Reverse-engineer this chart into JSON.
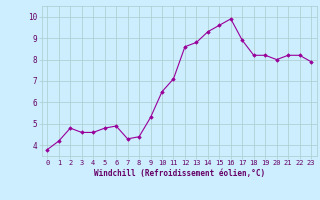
{
  "x": [
    0,
    1,
    2,
    3,
    4,
    5,
    6,
    7,
    8,
    9,
    10,
    11,
    12,
    13,
    14,
    15,
    16,
    17,
    18,
    19,
    20,
    21,
    22,
    23
  ],
  "y": [
    3.8,
    4.2,
    4.8,
    4.6,
    4.6,
    4.8,
    4.9,
    4.3,
    4.4,
    5.3,
    6.5,
    7.1,
    8.6,
    8.8,
    9.3,
    9.6,
    9.9,
    8.9,
    8.2,
    8.2,
    8.0,
    8.2,
    8.2,
    7.9
  ],
  "line_color": "#990099",
  "marker": "D",
  "marker_size": 1.8,
  "bg_color": "#cceeff",
  "grid_color": "#aacccc",
  "xlabel": "Windchill (Refroidissement éolien,°C)",
  "xlabel_color": "#660066",
  "tick_color": "#660066",
  "ylim": [
    3.5,
    10.5
  ],
  "yticks": [
    4,
    5,
    6,
    7,
    8,
    9,
    10
  ],
  "xlim": [
    -0.5,
    23.5
  ],
  "xticks": [
    0,
    1,
    2,
    3,
    4,
    5,
    6,
    7,
    8,
    9,
    10,
    11,
    12,
    13,
    14,
    15,
    16,
    17,
    18,
    19,
    20,
    21,
    22,
    23
  ],
  "xtick_labels": [
    "0",
    "1",
    "2",
    "3",
    "4",
    "5",
    "6",
    "7",
    "8",
    "9",
    "10",
    "11",
    "12",
    "13",
    "14",
    "15",
    "16",
    "17",
    "18",
    "19",
    "20",
    "21",
    "22",
    "23"
  ]
}
